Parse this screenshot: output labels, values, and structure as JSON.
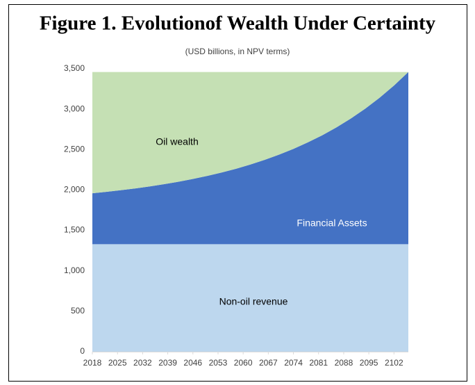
{
  "chart_data": {
    "type": "stacked_area",
    "title": "Figure 1. Evolutionof Wealth Under Certainty",
    "subtitle": "(USD billions,  in NPV terms)",
    "x": [
      2018,
      2022,
      2026,
      2030,
      2034,
      2038,
      2042,
      2046,
      2050,
      2054,
      2058,
      2062,
      2066,
      2070,
      2074,
      2078,
      2082,
      2086,
      2090,
      2094,
      2098,
      2102,
      2106
    ],
    "xlim": [
      2018,
      2106
    ],
    "xticks": [
      2018,
      2025,
      2032,
      2039,
      2046,
      2053,
      2060,
      2067,
      2074,
      2081,
      2088,
      2095,
      2102
    ],
    "ylim": [
      0,
      3500
    ],
    "yticks": [
      0,
      500,
      {
        "value": 1000,
        "label": "1,000"
      },
      {
        "value": 1500,
        "label": "1,500"
      },
      {
        "value": 2000,
        "label": "2,000"
      },
      {
        "value": 2500,
        "label": "2,500"
      },
      {
        "value": 3000,
        "label": "3,000"
      },
      {
        "value": 3500,
        "label": "3,500"
      }
    ],
    "series": [
      {
        "name": "Non-oil revenue",
        "color": "#bdd7ee",
        "values": [
          1330,
          1330,
          1330,
          1330,
          1330,
          1330,
          1330,
          1330,
          1330,
          1330,
          1330,
          1330,
          1330,
          1330,
          1330,
          1330,
          1330,
          1330,
          1330,
          1330,
          1330,
          1330,
          1330
        ]
      },
      {
        "name": "Financial Assets",
        "color": "#4472c4",
        "values": [
          630,
          648,
          668,
          690,
          715,
          742,
          773,
          807,
          845,
          887,
          933,
          985,
          1043,
          1108,
          1179,
          1259,
          1347,
          1446,
          1555,
          1677,
          1812,
          1963,
          2130
        ]
      },
      {
        "name": "Oil wealth",
        "color": "#c5e0b4",
        "values": [
          1500,
          1482,
          1462,
          1440,
          1415,
          1388,
          1357,
          1323,
          1285,
          1243,
          1197,
          1145,
          1087,
          1022,
          951,
          871,
          783,
          684,
          575,
          453,
          318,
          167,
          0
        ]
      }
    ]
  }
}
